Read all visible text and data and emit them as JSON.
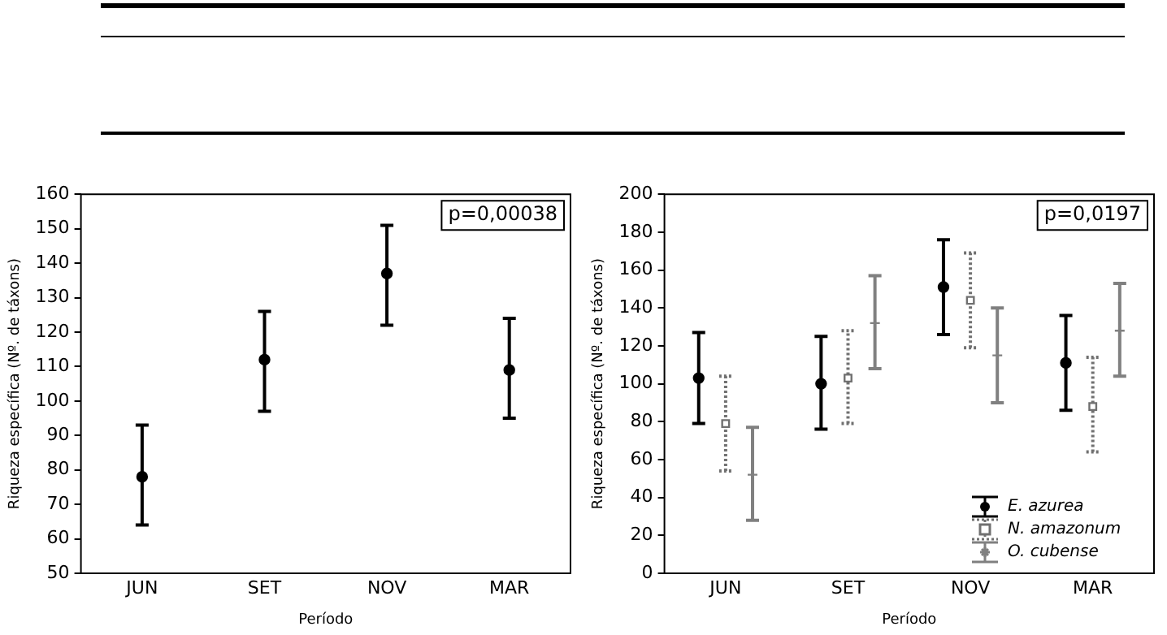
{
  "chart_data": [
    {
      "type": "scatter",
      "xlabel": "Período",
      "ylabel": "Riqueza específica (Nº. de táxons)",
      "categories": [
        "JUN",
        "SET",
        "NOV",
        "MAR"
      ],
      "ylim": [
        50,
        160
      ],
      "yticks": [
        50,
        60,
        70,
        80,
        90,
        100,
        110,
        120,
        130,
        140,
        150,
        160
      ],
      "grid": false,
      "legend": false,
      "annotations": [
        "p=0,00038"
      ],
      "series": [
        {
          "color": "#000000",
          "marker": "circle",
          "line_style": "solid",
          "values": [
            78,
            112,
            137,
            109
          ],
          "errors": [
            [
              64,
              93
            ],
            [
              97,
              126
            ],
            [
              122,
              151
            ],
            [
              95,
              124
            ]
          ]
        }
      ]
    },
    {
      "type": "scatter",
      "xlabel": "Período",
      "ylabel": "Riqueza específica (Nº. de táxons)",
      "categories": [
        "JUN",
        "SET",
        "NOV",
        "MAR"
      ],
      "ylim": [
        0,
        200
      ],
      "yticks": [
        0,
        20,
        40,
        60,
        80,
        100,
        120,
        140,
        160,
        180,
        200
      ],
      "grid": false,
      "legend": "bottom right",
      "annotations": [
        "p=0,0197"
      ],
      "series": [
        {
          "name": "E. azurea",
          "color": "#000000",
          "marker": "circle",
          "line_style": "solid",
          "values": [
            103,
            100,
            151,
            111
          ],
          "errors": [
            [
              79,
              127
            ],
            [
              76,
              125
            ],
            [
              126,
              176
            ],
            [
              86,
              136
            ]
          ]
        },
        {
          "name": "N. amazonum",
          "color": "#707070",
          "marker": "square",
          "line_style": "dotted",
          "values": [
            79,
            103,
            144,
            88
          ],
          "errors": [
            [
              54,
              104
            ],
            [
              79,
              128
            ],
            [
              119,
              169
            ],
            [
              64,
              114
            ]
          ]
        },
        {
          "name": "O. cubense",
          "color": "#808080",
          "marker": "cross",
          "line_style": "solid",
          "values": [
            52,
            132,
            115,
            128
          ],
          "errors": [
            [
              28,
              77
            ],
            [
              108,
              157
            ],
            [
              90,
              140
            ],
            [
              104,
              153
            ]
          ]
        }
      ]
    }
  ]
}
